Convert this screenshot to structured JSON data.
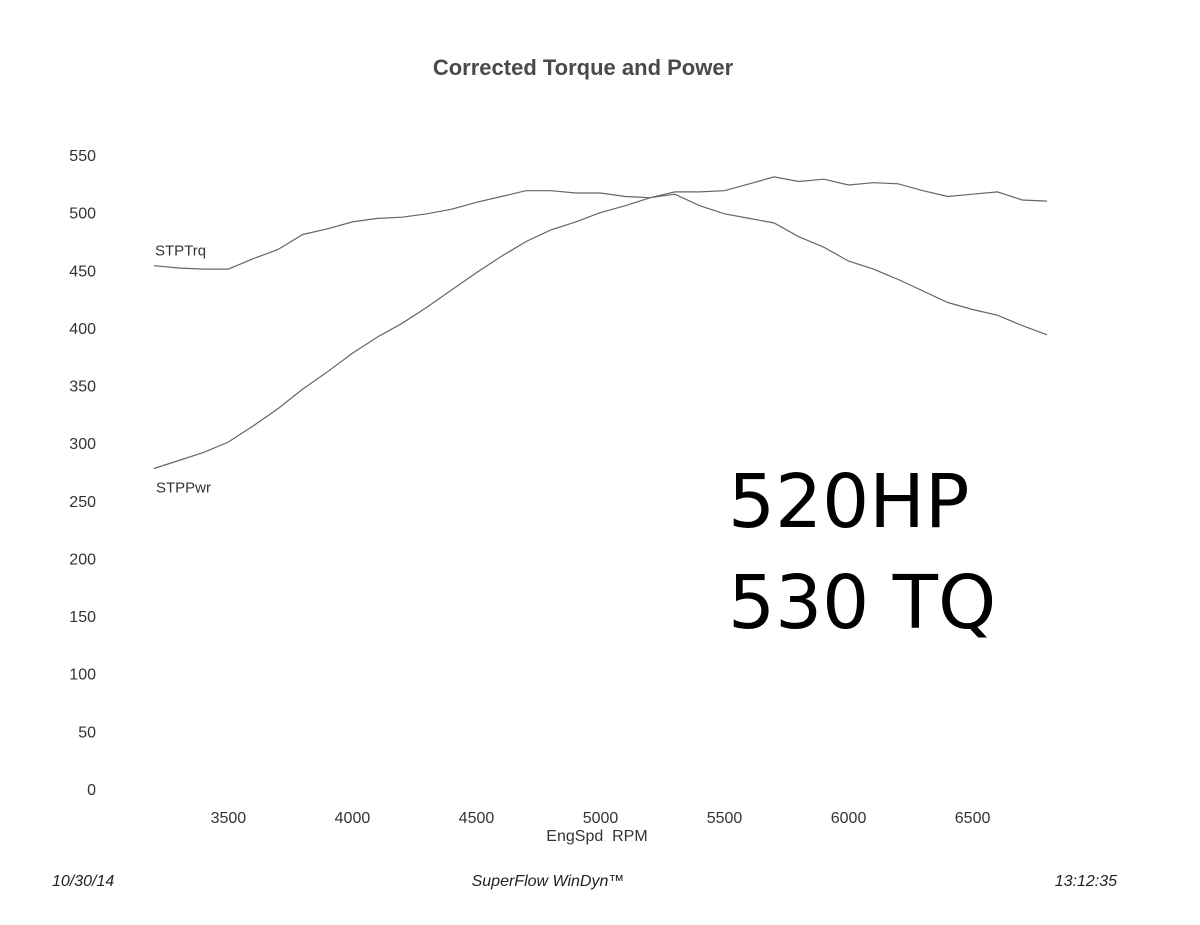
{
  "chart_data": {
    "type": "line",
    "title": "Corrected Torque and Power",
    "xlabel": "EngSpd  RPM",
    "ylabel": "",
    "xlim": [
      3200,
      6800
    ],
    "ylim": [
      0,
      550
    ],
    "x_ticks": [
      3500,
      4000,
      4500,
      5000,
      5500,
      6000,
      6500
    ],
    "y_ticks": [
      0,
      50,
      100,
      150,
      200,
      250,
      300,
      350,
      400,
      450,
      500,
      550
    ],
    "grid": false,
    "series": [
      {
        "name": "STPTrq",
        "x": [
          3200,
          3300,
          3400,
          3500,
          3600,
          3700,
          3800,
          3900,
          4000,
          4100,
          4200,
          4300,
          4400,
          4500,
          4600,
          4700,
          4800,
          4900,
          5000,
          5100,
          5200,
          5300,
          5400,
          5500,
          5600,
          5700,
          5800,
          5900,
          6000,
          6100,
          6200,
          6300,
          6400,
          6500,
          6600,
          6700,
          6800
        ],
        "values": [
          454,
          452,
          451,
          451,
          460,
          468,
          481,
          486,
          492,
          495,
          496,
          499,
          503,
          509,
          514,
          519,
          519,
          517,
          517,
          514,
          513,
          518,
          518,
          519,
          525,
          531,
          527,
          529,
          524,
          526,
          525,
          519,
          514,
          516,
          518,
          511,
          510
        ]
      },
      {
        "name": "STPPwr",
        "x": [
          3200,
          3300,
          3400,
          3500,
          3600,
          3700,
          3800,
          3900,
          4000,
          4100,
          4200,
          4300,
          4400,
          4500,
          4600,
          4700,
          4800,
          4900,
          5000,
          5100,
          5200,
          5300,
          5400,
          5500,
          5600,
          5700,
          5800,
          5900,
          6000,
          6100,
          6200,
          6300,
          6400,
          6500,
          6600,
          6700,
          6800
        ],
        "values": [
          278,
          285,
          292,
          301,
          315,
          330,
          347,
          362,
          378,
          392,
          404,
          418,
          433,
          448,
          462,
          475,
          485,
          492,
          500,
          506,
          513,
          516,
          506,
          499,
          495,
          491,
          479,
          470,
          458,
          451,
          442,
          432,
          422,
          416,
          411,
          402,
          394
        ]
      }
    ],
    "annotations": [
      "520HP",
      "530 TQ"
    ]
  },
  "footer": {
    "date": "10/30/14",
    "software": "SuperFlow WinDyn™",
    "time": "13:12:35"
  }
}
